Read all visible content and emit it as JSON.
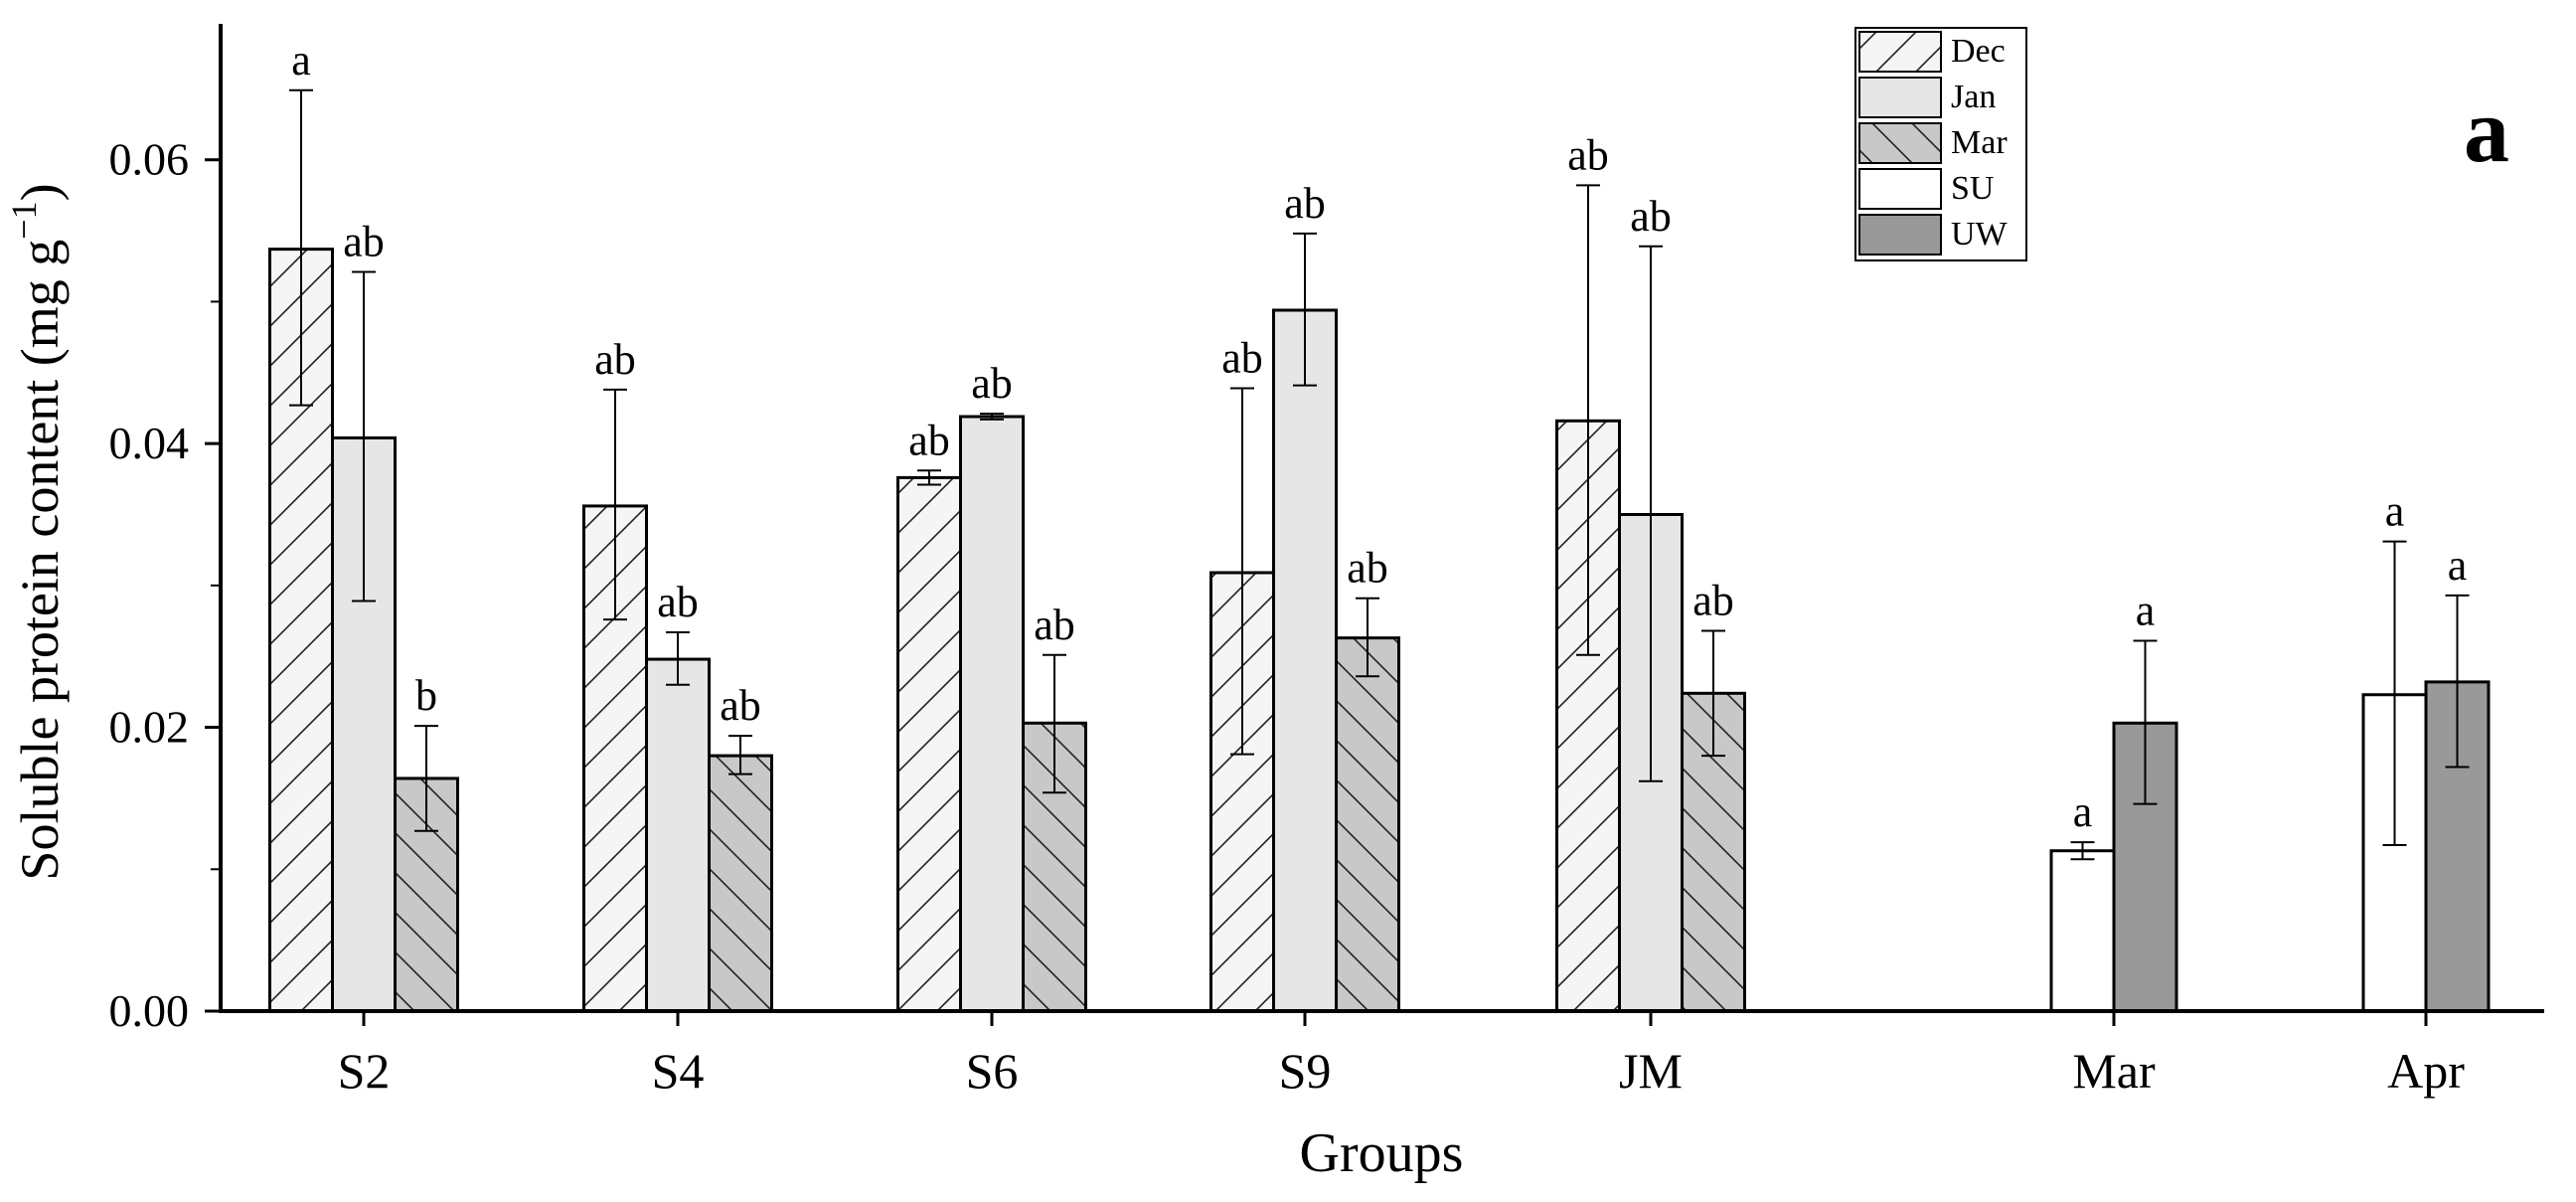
{
  "chart_data": {
    "type": "bar",
    "panel_label": "a",
    "xlabel": "Groups",
    "ylabel": "Soluble protein content (mg g⁻¹)",
    "ylim": [
      0,
      0.07
    ],
    "yticks": [
      "0.00",
      "0.02",
      "0.04",
      "0.06"
    ],
    "grid": false,
    "legend_position": "top-right",
    "series": [
      {
        "name": "Dec",
        "pattern": "diag-up",
        "color": "#f5f5f5"
      },
      {
        "name": "Jan",
        "pattern": "solid",
        "color": "#e6e6e6"
      },
      {
        "name": "Mar",
        "pattern": "diag-down",
        "color": "#c8c8c8"
      },
      {
        "name": "SU",
        "pattern": "solid",
        "color": "#ffffff"
      },
      {
        "name": "UW",
        "pattern": "solid",
        "color": "#999999"
      }
    ],
    "groups": [
      {
        "label": "S2",
        "bars": [
          {
            "series": "Dec",
            "value": 0.0537,
            "err_low": 0.0427,
            "err_high": 0.0649,
            "letter": "a"
          },
          {
            "series": "Jan",
            "value": 0.0404,
            "err_low": 0.0289,
            "err_high": 0.0521,
            "letter": "ab"
          },
          {
            "series": "Mar",
            "value": 0.0164,
            "err_low": 0.0127,
            "err_high": 0.0201,
            "letter": "b"
          }
        ]
      },
      {
        "label": "S4",
        "bars": [
          {
            "series": "Dec",
            "value": 0.0356,
            "err_low": 0.0276,
            "err_high": 0.0438,
            "letter": "ab"
          },
          {
            "series": "Jan",
            "value": 0.0248,
            "err_low": 0.023,
            "err_high": 0.0267,
            "letter": "ab"
          },
          {
            "series": "Mar",
            "value": 0.018,
            "err_low": 0.0167,
            "err_high": 0.0194,
            "letter": "ab"
          }
        ]
      },
      {
        "label": "S6",
        "bars": [
          {
            "series": "Dec",
            "value": 0.0376,
            "err_low": 0.0371,
            "err_high": 0.0381,
            "letter": "ab"
          },
          {
            "series": "Jan",
            "value": 0.0419,
            "err_low": 0.0417,
            "err_high": 0.0421,
            "letter": "ab"
          },
          {
            "series": "Mar",
            "value": 0.0203,
            "err_low": 0.0154,
            "err_high": 0.0251,
            "letter": "ab"
          }
        ]
      },
      {
        "label": "S9",
        "bars": [
          {
            "series": "Dec",
            "value": 0.0309,
            "err_low": 0.0181,
            "err_high": 0.0439,
            "letter": "ab"
          },
          {
            "series": "Jan",
            "value": 0.0494,
            "err_low": 0.0441,
            "err_high": 0.0548,
            "letter": "ab"
          },
          {
            "series": "Mar",
            "value": 0.0263,
            "err_low": 0.0236,
            "err_high": 0.0291,
            "letter": "ab"
          }
        ]
      },
      {
        "label": "JM",
        "bars": [
          {
            "series": "Dec",
            "value": 0.0416,
            "err_low": 0.0251,
            "err_high": 0.0582,
            "letter": "ab"
          },
          {
            "series": "Jan",
            "value": 0.035,
            "err_low": 0.0162,
            "err_high": 0.0539,
            "letter": "ab"
          },
          {
            "series": "Mar",
            "value": 0.0224,
            "err_low": 0.018,
            "err_high": 0.0268,
            "letter": "ab"
          }
        ]
      },
      {
        "label": "Mar",
        "bars": [
          {
            "series": "SU",
            "value": 0.0113,
            "err_low": 0.0107,
            "err_high": 0.0119,
            "letter": "a"
          },
          {
            "series": "UW",
            "value": 0.0203,
            "err_low": 0.0146,
            "err_high": 0.0261,
            "letter": "a"
          }
        ]
      },
      {
        "label": "Apr",
        "bars": [
          {
            "series": "SU",
            "value": 0.0223,
            "err_low": 0.0117,
            "err_high": 0.0331,
            "letter": "a"
          },
          {
            "series": "UW",
            "value": 0.0232,
            "err_low": 0.0172,
            "err_high": 0.0293,
            "letter": "a"
          }
        ]
      }
    ]
  }
}
